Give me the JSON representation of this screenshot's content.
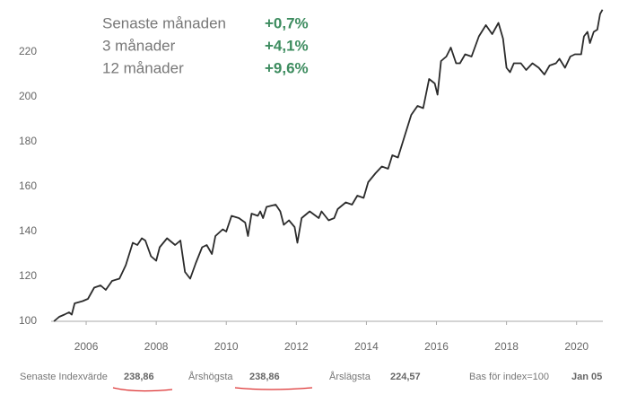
{
  "chart_data": {
    "type": "line",
    "x": [
      2005.08,
      2005.23,
      2005.38,
      2005.51,
      2005.59,
      2005.67,
      2005.9,
      2006.05,
      2006.23,
      2006.41,
      2006.56,
      2006.74,
      2006.95,
      2007.13,
      2007.33,
      2007.46,
      2007.59,
      2007.69,
      2007.85,
      2008.0,
      2008.1,
      2008.31,
      2008.54,
      2008.69,
      2008.82,
      2008.97,
      2009.13,
      2009.31,
      2009.44,
      2009.59,
      2009.69,
      2009.9,
      2010.0,
      2010.15,
      2010.36,
      2010.54,
      2010.62,
      2010.72,
      2010.9,
      2010.97,
      2011.05,
      2011.15,
      2011.41,
      2011.54,
      2011.64,
      2011.79,
      2011.95,
      2012.03,
      2012.15,
      2012.38,
      2012.64,
      2012.72,
      2012.92,
      2013.08,
      2013.18,
      2013.41,
      2013.59,
      2013.74,
      2013.92,
      2014.05,
      2014.26,
      2014.44,
      2014.62,
      2014.74,
      2014.9,
      2015.08,
      2015.28,
      2015.46,
      2015.62,
      2015.79,
      2015.95,
      2016.03,
      2016.13,
      2016.28,
      2016.41,
      2016.56,
      2016.67,
      2016.82,
      2017.0,
      2017.21,
      2017.41,
      2017.59,
      2017.77,
      2017.9,
      2018.0,
      2018.1,
      2018.21,
      2018.41,
      2018.56,
      2018.74,
      2018.92,
      2019.08,
      2019.23,
      2019.41,
      2019.51,
      2019.67,
      2019.82,
      2019.95,
      2020.13,
      2020.21,
      2020.31,
      2020.38,
      2020.49,
      2020.59,
      2020.67,
      2020.74
    ],
    "series": [
      {
        "name": "Index",
        "color": "#2b2b2b",
        "values": [
          100,
          102,
          103,
          104,
          103,
          108,
          109,
          110,
          115,
          116,
          114,
          118,
          119,
          125,
          135,
          134,
          137,
          136,
          129,
          127,
          133,
          137,
          134,
          136,
          122,
          119,
          126,
          133,
          134,
          130,
          138,
          141,
          140,
          147,
          146,
          144,
          138,
          148,
          147,
          149,
          146,
          151,
          152,
          149,
          143,
          145,
          142,
          135,
          146,
          149,
          146,
          149,
          145,
          146,
          150,
          153,
          152,
          156,
          155,
          162,
          166,
          169,
          168,
          174,
          173,
          182,
          192,
          196,
          195,
          208,
          206,
          201,
          216,
          218,
          222,
          215,
          215,
          219,
          218,
          227,
          232,
          228,
          233,
          226,
          213,
          211,
          215,
          215,
          212,
          215,
          213,
          210,
          214,
          215,
          217,
          213,
          218,
          219,
          219,
          227,
          229,
          224,
          229,
          230,
          237,
          238.86
        ]
      }
    ],
    "xlim": [
      2005,
      2020.75
    ],
    "xticks": [
      2006,
      2008,
      2010,
      2012,
      2014,
      2016,
      2018,
      2020
    ],
    "ylim": [
      100,
      240
    ],
    "yticks": [
      100,
      120,
      140,
      160,
      180,
      200,
      220
    ]
  },
  "summary": [
    {
      "label": "Senaste månaden",
      "value": "+0,7%"
    },
    {
      "label": "3 månader",
      "value": "+4,1%"
    },
    {
      "label": "12 månader",
      "value": "+9,6%"
    }
  ],
  "footer": [
    {
      "label": "Senaste Indexvärde",
      "value": "238,86"
    },
    {
      "label": "Årshögsta",
      "value": "238,86"
    },
    {
      "label": "Årslägsta",
      "value": "224,57"
    },
    {
      "label": "Bas för index=100",
      "value": "Jan 05"
    }
  ]
}
